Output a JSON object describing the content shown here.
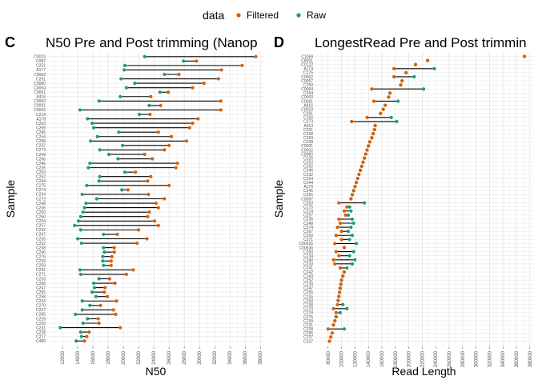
{
  "legend": {
    "title": "data",
    "items": [
      {
        "label": "Filtered",
        "color": "#D95F02"
      },
      {
        "label": "Raw",
        "color": "#1B9E77"
      }
    ]
  },
  "chart_data": [
    {
      "type": "dumbbell",
      "tag": "C",
      "title": "N50 Pre and Post trimming (Nanop",
      "xlabel": "N50",
      "ylabel": "Sample",
      "xlim": [
        10000,
        38500
      ],
      "xticks": [
        12000,
        14000,
        16000,
        18000,
        20000,
        22000,
        24000,
        26000,
        28000,
        30000,
        32000,
        34000,
        36000,
        38000
      ],
      "grid": true,
      "rows": [
        {
          "sample": "C0023",
          "raw": 22800,
          "filtered": 37400
        },
        {
          "sample": "C087",
          "raw": 27900,
          "filtered": 29600
        },
        {
          "sample": "C251",
          "raw": 20200,
          "filtered": 35600
        },
        {
          "sample": "A177",
          "raw": 20100,
          "filtered": 32900
        },
        {
          "sample": "C0062",
          "raw": 25400,
          "filtered": 27300
        },
        {
          "sample": "C261",
          "raw": 19700,
          "filtered": 32500
        },
        {
          "sample": "C0060",
          "raw": 21500,
          "filtered": 30600
        },
        {
          "sample": "C0064",
          "raw": 20400,
          "filtered": 29100
        },
        {
          "sample": "C0061",
          "raw": 24800,
          "filtered": 25900
        },
        {
          "sample": "A416",
          "raw": 19600,
          "filtered": 23600
        },
        {
          "sample": "C0063",
          "raw": 16800,
          "filtered": 32800
        },
        {
          "sample": "C0001",
          "raw": 23400,
          "filtered": 24900
        },
        {
          "sample": "C0002",
          "raw": 14300,
          "filtered": 32800
        },
        {
          "sample": "C214",
          "raw": 22100,
          "filtered": 23500
        },
        {
          "sample": "A178",
          "raw": 15300,
          "filtered": 29800
        },
        {
          "sample": "C263",
          "raw": 15900,
          "filtered": 29100
        },
        {
          "sample": "C269",
          "raw": 16100,
          "filtered": 28700
        },
        {
          "sample": "C245",
          "raw": 19400,
          "filtered": 24600
        },
        {
          "sample": "C254",
          "raw": 16600,
          "filtered": 26300
        },
        {
          "sample": "C268",
          "raw": 15700,
          "filtered": 28300
        },
        {
          "sample": "C232",
          "raw": 19900,
          "filtered": 26000
        },
        {
          "sample": "C273",
          "raw": 16900,
          "filtered": 25400
        },
        {
          "sample": "C249",
          "raw": 18100,
          "filtered": 22800
        },
        {
          "sample": "C266",
          "raw": 19300,
          "filtered": 23800
        },
        {
          "sample": "C246",
          "raw": 15600,
          "filtered": 27100
        },
        {
          "sample": "C226",
          "raw": 15400,
          "filtered": 26900
        },
        {
          "sample": "C253",
          "raw": 20200,
          "filtered": 21600
        },
        {
          "sample": "C262",
          "raw": 16900,
          "filtered": 23600
        },
        {
          "sample": "C244",
          "raw": 16800,
          "filtered": 23200
        },
        {
          "sample": "C275",
          "raw": 15200,
          "filtered": 26000
        },
        {
          "sample": "C274",
          "raw": 19800,
          "filtered": 20600
        },
        {
          "sample": "C234",
          "raw": 14600,
          "filtered": 23300
        },
        {
          "sample": "C272",
          "raw": 16500,
          "filtered": 25400
        },
        {
          "sample": "C248",
          "raw": 15100,
          "filtered": 24300
        },
        {
          "sample": "C236",
          "raw": 14900,
          "filtered": 24600
        },
        {
          "sample": "C250",
          "raw": 14700,
          "filtered": 23400
        },
        {
          "sample": "C260",
          "raw": 14400,
          "filtered": 23200
        },
        {
          "sample": "C264",
          "raw": 14100,
          "filtered": 24100
        },
        {
          "sample": "C257",
          "raw": 13600,
          "filtered": 24600
        },
        {
          "sample": "C242",
          "raw": 14400,
          "filtered": 22000
        },
        {
          "sample": "C267",
          "raw": 17400,
          "filtered": 19200
        },
        {
          "sample": "C235",
          "raw": 14000,
          "filtered": 23100
        },
        {
          "sample": "C252",
          "raw": 14500,
          "filtered": 21800
        },
        {
          "sample": "C238",
          "raw": 17400,
          "filtered": 18800
        },
        {
          "sample": "C240",
          "raw": 17500,
          "filtered": 18800
        },
        {
          "sample": "C276",
          "raw": 17300,
          "filtered": 18500
        },
        {
          "sample": "C239",
          "raw": 17300,
          "filtered": 18400
        },
        {
          "sample": "C259",
          "raw": 17400,
          "filtered": 18400
        },
        {
          "sample": "C241",
          "raw": 14300,
          "filtered": 21300
        },
        {
          "sample": "C271",
          "raw": 14400,
          "filtered": 20400
        },
        {
          "sample": "C233",
          "raw": 16800,
          "filtered": 18200
        },
        {
          "sample": "C256",
          "raw": 16100,
          "filtered": 18900
        },
        {
          "sample": "C247",
          "raw": 16200,
          "filtered": 17600
        },
        {
          "sample": "C255",
          "raw": 15900,
          "filtered": 17500
        },
        {
          "sample": "C258",
          "raw": 16400,
          "filtered": 17900
        },
        {
          "sample": "C243",
          "raw": 14600,
          "filtered": 19100
        },
        {
          "sample": "C270",
          "raw": 15600,
          "filtered": 17000
        },
        {
          "sample": "C237",
          "raw": 14600,
          "filtered": 18700
        },
        {
          "sample": "C265",
          "raw": 13700,
          "filtered": 19000
        },
        {
          "sample": "C229",
          "raw": 15300,
          "filtered": 16700
        },
        {
          "sample": "C230",
          "raw": 14700,
          "filtered": 16800
        },
        {
          "sample": "C231",
          "raw": 11700,
          "filtered": 19600
        },
        {
          "sample": "C228",
          "raw": 14400,
          "filtered": 15500
        },
        {
          "sample": "C227",
          "raw": 14500,
          "filtered": 15200
        },
        {
          "sample": "C480",
          "raw": 13800,
          "filtered": 14900
        }
      ]
    },
    {
      "type": "dumbbell",
      "tag": "D",
      "title": "LongestRead Pre and Post trimmin",
      "xlabel": "Read Length",
      "ylabel": "Sample",
      "xlim": [
        60000,
        385000
      ],
      "xticks": [
        80000,
        100000,
        120000,
        140000,
        160000,
        180000,
        200000,
        220000,
        240000,
        260000,
        280000,
        300000,
        320000,
        340000,
        360000,
        380000
      ],
      "grid": true,
      "rows": [
        {
          "sample": "C1069",
          "raw": 372000,
          "filtered": 372000
        },
        {
          "sample": "C8001",
          "raw": 228000,
          "filtered": 228000
        },
        {
          "sample": "C0122",
          "raw": 210000,
          "filtered": 210000
        },
        {
          "sample": "A174",
          "raw": 238000,
          "filtered": 178000
        },
        {
          "sample": "C175",
          "raw": 196000,
          "filtered": 196000
        },
        {
          "sample": "C0062",
          "raw": 208000,
          "filtered": 178000
        },
        {
          "sample": "C0057",
          "raw": 190000,
          "filtered": 190000
        },
        {
          "sample": "C259",
          "raw": 188000,
          "filtered": 188000
        },
        {
          "sample": "C0064",
          "raw": 222000,
          "filtered": 145000
        },
        {
          "sample": "C264",
          "raw": 172000,
          "filtered": 172000
        },
        {
          "sample": "C0063",
          "raw": 170000,
          "filtered": 170000
        },
        {
          "sample": "C0061",
          "raw": 184000,
          "filtered": 148000
        },
        {
          "sample": "A416",
          "raw": 165000,
          "filtered": 165000
        },
        {
          "sample": "C0023",
          "raw": 162000,
          "filtered": 162000
        },
        {
          "sample": "C261",
          "raw": 158000,
          "filtered": 158000
        },
        {
          "sample": "C256",
          "raw": 174000,
          "filtered": 138000
        },
        {
          "sample": "C273",
          "raw": 182000,
          "filtered": 115000
        },
        {
          "sample": "A313",
          "raw": 150000,
          "filtered": 150000
        },
        {
          "sample": "C251",
          "raw": 149000,
          "filtered": 149000
        },
        {
          "sample": "C268",
          "raw": 147000,
          "filtered": 147000
        },
        {
          "sample": "C269",
          "raw": 145000,
          "filtered": 145000
        },
        {
          "sample": "C249",
          "raw": 142000,
          "filtered": 142000
        },
        {
          "sample": "C0001",
          "raw": 140000,
          "filtered": 140000
        },
        {
          "sample": "C0002",
          "raw": 138000,
          "filtered": 138000
        },
        {
          "sample": "C0060",
          "raw": 136000,
          "filtered": 136000
        },
        {
          "sample": "C226",
          "raw": 134000,
          "filtered": 134000
        },
        {
          "sample": "C253",
          "raw": 132000,
          "filtered": 132000
        },
        {
          "sample": "C262",
          "raw": 130000,
          "filtered": 130000
        },
        {
          "sample": "C246",
          "raw": 128000,
          "filtered": 128000
        },
        {
          "sample": "C232",
          "raw": 126000,
          "filtered": 126000
        },
        {
          "sample": "C254",
          "raw": 124000,
          "filtered": 124000
        },
        {
          "sample": "C244",
          "raw": 122000,
          "filtered": 122000
        },
        {
          "sample": "A178",
          "raw": 120000,
          "filtered": 120000
        },
        {
          "sample": "C245",
          "raw": 118000,
          "filtered": 118000
        },
        {
          "sample": "C266",
          "raw": 116000,
          "filtered": 116000
        },
        {
          "sample": "C0087",
          "raw": 114000,
          "filtered": 114000
        },
        {
          "sample": "C263",
          "raw": 134000,
          "filtered": 96000
        },
        {
          "sample": "C275",
          "raw": 112000,
          "filtered": 108000
        },
        {
          "sample": "C214",
          "raw": 114000,
          "filtered": 104000
        },
        {
          "sample": "C257",
          "raw": 110000,
          "filtered": 106000
        },
        {
          "sample": "C236",
          "raw": 116000,
          "filtered": 96000
        },
        {
          "sample": "C248",
          "raw": 118000,
          "filtered": 98000
        },
        {
          "sample": "C274",
          "raw": 114000,
          "filtered": 94000
        },
        {
          "sample": "C267",
          "raw": 110000,
          "filtered": 100000
        },
        {
          "sample": "C250",
          "raw": 116000,
          "filtered": 92000
        },
        {
          "sample": "C271",
          "raw": 112000,
          "filtered": 100000
        },
        {
          "sample": "C0062b",
          "raw": 122000,
          "filtered": 90000
        },
        {
          "sample": "C0063b",
          "raw": 104000,
          "filtered": 104000
        },
        {
          "sample": "C260",
          "raw": 118000,
          "filtered": 92000
        },
        {
          "sample": "C234",
          "raw": 112000,
          "filtered": 96000
        },
        {
          "sample": "C240",
          "raw": 120000,
          "filtered": 88000
        },
        {
          "sample": "C233",
          "raw": 116000,
          "filtered": 90000
        },
        {
          "sample": "C241",
          "raw": 108000,
          "filtered": 98000
        },
        {
          "sample": "C242",
          "raw": 104000,
          "filtered": 104000
        },
        {
          "sample": "C243",
          "raw": 102000,
          "filtered": 102000
        },
        {
          "sample": "C252",
          "raw": 100000,
          "filtered": 100000
        },
        {
          "sample": "C239",
          "raw": 99000,
          "filtered": 99000
        },
        {
          "sample": "C247",
          "raw": 98000,
          "filtered": 98000
        },
        {
          "sample": "C255",
          "raw": 97000,
          "filtered": 97000
        },
        {
          "sample": "C235",
          "raw": 96000,
          "filtered": 96000
        },
        {
          "sample": "C258",
          "raw": 95000,
          "filtered": 95000
        },
        {
          "sample": "C238",
          "raw": 102000,
          "filtered": 94000
        },
        {
          "sample": "C270",
          "raw": 108000,
          "filtered": 88000
        },
        {
          "sample": "C229",
          "raw": 98000,
          "filtered": 92000
        },
        {
          "sample": "C276",
          "raw": 92000,
          "filtered": 92000
        },
        {
          "sample": "C230",
          "raw": 90000,
          "filtered": 90000
        },
        {
          "sample": "C231",
          "raw": 88000,
          "filtered": 88000
        },
        {
          "sample": "C228",
          "raw": 104000,
          "filtered": 80000
        },
        {
          "sample": "C265",
          "raw": 86000,
          "filtered": 86000
        },
        {
          "sample": "C227",
          "raw": 84000,
          "filtered": 84000
        },
        {
          "sample": "C237",
          "raw": 82000,
          "filtered": 82000
        }
      ]
    }
  ]
}
